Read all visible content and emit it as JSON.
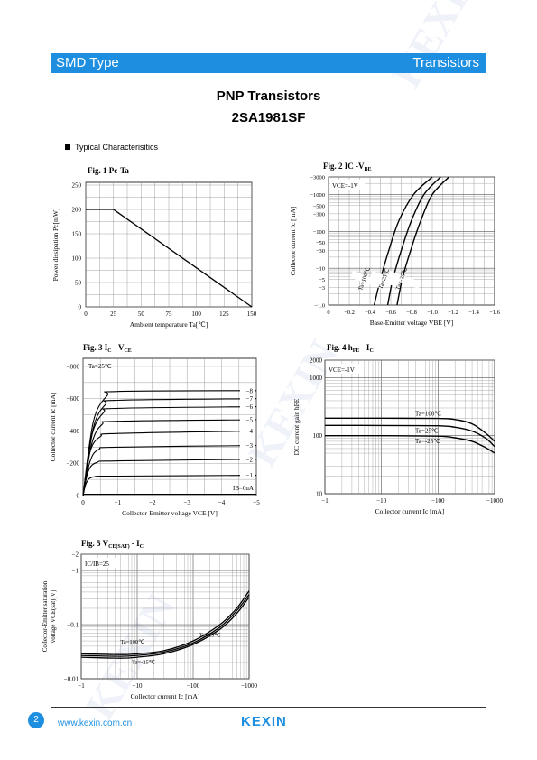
{
  "header": {
    "left": "SMD Type",
    "right": "Transistors"
  },
  "title": {
    "line1": "PNP  Transistors",
    "line2": "2SA1981SF"
  },
  "section": "Typical  Characterisitics",
  "footer": {
    "page": "2",
    "url": "www.kexin.com.cn",
    "logo": "KEXIN"
  },
  "colors": {
    "accent": "#1e8fe0"
  },
  "charts": {
    "fig1": {
      "title": "Fig. 1 Pc-Ta"
    },
    "fig2": {
      "title": "Fig. 2 IC -V"
    },
    "fig3": {
      "title": "Fig. 3 I"
    },
    "fig4": {
      "title": "Fig. 4 h"
    },
    "fig5": {
      "title": "Fig. 5 V"
    }
  },
  "chart_data": [
    {
      "id": "fig1",
      "type": "line",
      "title": "Fig. 1 Pc-Ta",
      "xlabel": "Ambient temperature Ta[℃]",
      "ylabel": "Power dissipation Pc[mW]",
      "xlim": [
        0,
        150
      ],
      "ylim": [
        0,
        250
      ],
      "grid": true,
      "xticks": [
        "0",
        "25",
        "50",
        "75",
        "100",
        "125",
        "150"
      ],
      "yticks": [
        "0",
        "50",
        "100",
        "150",
        "200",
        "250"
      ],
      "x": [
        0,
        25,
        150
      ],
      "y": [
        200,
        200,
        0
      ]
    },
    {
      "id": "fig2",
      "type": "line",
      "title": "Fig. 2 IC -VBE",
      "xlabel": "Base-Emitter voltage VBE [V]",
      "ylabel": "Collector current Ic [mA]",
      "xlim": [
        0,
        -1.6
      ],
      "ylim": [
        -1.0,
        -3000
      ],
      "yscale": "log",
      "grid": true,
      "condition": "VCE=-1V",
      "xticks": [
        "0",
        "-0.2",
        "-0.4",
        "-0.6",
        "-0.8",
        "-1.0",
        "-1.2",
        "-1.4",
        "-1.6"
      ],
      "yticks": [
        "-1.0",
        "-3",
        "-5",
        "-10",
        "-30",
        "-50",
        "-100",
        "-300",
        "-500",
        "-1000",
        "-3000"
      ],
      "series": [
        {
          "name": "Ta=100℃",
          "x": [
            -0.44,
            -0.5,
            -0.58,
            -0.68,
            -0.82,
            -1.0
          ],
          "y": [
            -1,
            -5,
            -30,
            -200,
            -1000,
            -3000
          ]
        },
        {
          "name": "Ta=25℃",
          "x": [
            -0.57,
            -0.62,
            -0.7,
            -0.8,
            -0.92,
            -1.08
          ],
          "y": [
            -1,
            -5,
            -30,
            -200,
            -1000,
            -3000
          ]
        },
        {
          "name": "Ta=-25℃",
          "x": [
            -0.66,
            -0.71,
            -0.79,
            -0.89,
            -1.0,
            -1.16
          ],
          "y": [
            -1,
            -5,
            -30,
            -200,
            -1000,
            -3000
          ]
        }
      ]
    },
    {
      "id": "fig3",
      "type": "line",
      "title": "Fig. 3 IC - VCE",
      "xlabel": "Collector-Emitter voltage VCE [V]",
      "ylabel": "Collector current Ic [mA]",
      "xlim": [
        0,
        -5
      ],
      "ylim": [
        0,
        -800
      ],
      "grid": true,
      "condition": "Ta=25℃",
      "note": "IB=0uA",
      "xticks": [
        "0",
        "-1",
        "-2",
        "-3",
        "-4",
        "-5"
      ],
      "yticks": [
        "0",
        "-200",
        "-400",
        "-600",
        "-800"
      ],
      "curve_labels": [
        "-1",
        "-2",
        "-3",
        "-4",
        "-5",
        "-6",
        "-7",
        "-8"
      ],
      "series": [
        {
          "name": "-1",
          "x": [
            0,
            -0.1,
            -0.3,
            -1,
            -5
          ],
          "y": [
            0,
            -80,
            -115,
            -120,
            -125
          ]
        },
        {
          "name": "-2",
          "x": [
            0,
            -0.15,
            -0.4,
            -1,
            -5
          ],
          "y": [
            0,
            -150,
            -205,
            -215,
            -225
          ]
        },
        {
          "name": "-3",
          "x": [
            0,
            -0.2,
            -0.45,
            -1,
            -5
          ],
          "y": [
            0,
            -210,
            -285,
            -300,
            -310
          ]
        },
        {
          "name": "-4",
          "x": [
            0,
            -0.2,
            -0.5,
            -1,
            -5
          ],
          "y": [
            0,
            -270,
            -365,
            -385,
            -400
          ]
        },
        {
          "name": "-5",
          "x": [
            0,
            -0.25,
            -0.55,
            -1,
            -5
          ],
          "y": [
            0,
            -320,
            -440,
            -460,
            -470
          ]
        },
        {
          "name": "-6",
          "x": [
            0,
            -0.25,
            -0.6,
            -1,
            -5
          ],
          "y": [
            0,
            -370,
            -515,
            -540,
            -550
          ]
        },
        {
          "name": "-7",
          "x": [
            0,
            -0.3,
            -0.65,
            -1,
            -5
          ],
          "y": [
            0,
            -420,
            -565,
            -590,
            -600
          ]
        },
        {
          "name": "-8",
          "x": [
            0,
            -0.3,
            -0.7,
            -1,
            -5
          ],
          "y": [
            0,
            -460,
            -620,
            -645,
            -650
          ]
        }
      ]
    },
    {
      "id": "fig4",
      "type": "line",
      "title": "Fig. 4 hFE - IC",
      "xlabel": "Collector current Ic [mA]",
      "ylabel": "DC current gain hFE",
      "xlim": [
        -1,
        -1000
      ],
      "ylim": [
        10,
        2000
      ],
      "xscale": "log",
      "yscale": "log",
      "grid": true,
      "condition": "VCE=-1V",
      "xticks": [
        "-1",
        "-10",
        "-100",
        "-1000"
      ],
      "yticks": [
        "10",
        "100",
        "1000",
        "2000"
      ],
      "series": [
        {
          "name": "Ta=100℃",
          "x": [
            -1,
            -10,
            -100,
            -200,
            -400,
            -700,
            -1000
          ],
          "y": [
            200,
            200,
            198,
            190,
            160,
            110,
            80
          ]
        },
        {
          "name": "Ta=25℃",
          "x": [
            -1,
            -10,
            -100,
            -200,
            -400,
            -700,
            -1000
          ],
          "y": [
            150,
            150,
            148,
            140,
            120,
            90,
            65
          ]
        },
        {
          "name": "Ta=-25℃",
          "x": [
            -1,
            -10,
            -100,
            -200,
            -400,
            -700,
            -1000
          ],
          "y": [
            100,
            100,
            98,
            92,
            80,
            62,
            50
          ]
        }
      ]
    },
    {
      "id": "fig5",
      "type": "line",
      "title": "Fig. 5 VCE(SAT) - IC",
      "xlabel": "Collector current Ic [mA]",
      "ylabel": "Collector-Emitter saturation voltage VCE(sat)[V]",
      "xlim": [
        -1,
        -1000
      ],
      "ylim": [
        -0.01,
        -2
      ],
      "xscale": "log",
      "yscale": "log",
      "grid": true,
      "condition": "IC/IB=25",
      "xticks": [
        "-1",
        "-10",
        "-100",
        "-1000"
      ],
      "yticks": [
        "-0.01",
        "-0.1",
        "-1",
        "-2"
      ],
      "series": [
        {
          "name": "Ta=100℃",
          "x": [
            -1,
            -5,
            -10,
            -30,
            -100,
            -300,
            -600,
            -1000
          ],
          "y": [
            -0.029,
            -0.028,
            -0.029,
            -0.033,
            -0.05,
            -0.1,
            -0.2,
            -0.42
          ]
        },
        {
          "name": "Ta=25℃",
          "x": [
            -1,
            -5,
            -10,
            -30,
            -100,
            -300,
            -600,
            -1000
          ],
          "y": [
            -0.027,
            -0.026,
            -0.027,
            -0.031,
            -0.046,
            -0.09,
            -0.18,
            -0.36
          ]
        },
        {
          "name": "Ta=-25℃",
          "x": [
            -1,
            -5,
            -10,
            -30,
            -100,
            -300,
            -600,
            -1000
          ],
          "y": [
            -0.025,
            -0.024,
            -0.025,
            -0.029,
            -0.043,
            -0.082,
            -0.16,
            -0.32
          ]
        }
      ]
    }
  ]
}
